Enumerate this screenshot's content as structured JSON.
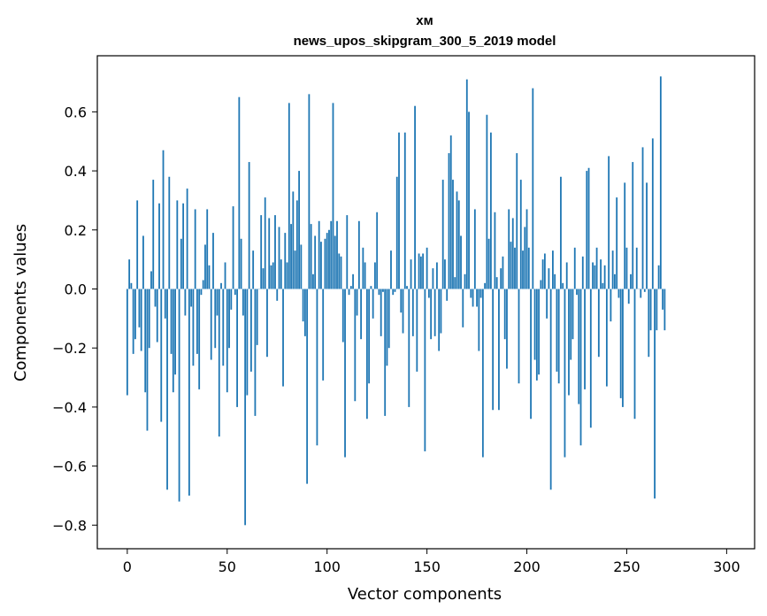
{
  "chart_data": {
    "type": "bar",
    "title_line1": "хм",
    "title_line2": "news_upos_skipgram_300_5_2019 model",
    "xlabel": "Vector components",
    "ylabel": "Components values",
    "xlim": [
      -15,
      314
    ],
    "ylim": [
      -0.88,
      0.79
    ],
    "xticks": [
      0,
      50,
      100,
      150,
      200,
      250,
      300
    ],
    "yticks": [
      -0.8,
      -0.6,
      -0.4,
      -0.2,
      0.0,
      0.2,
      0.4,
      0.6
    ],
    "ytick_labels": [
      "−0.8",
      "−0.6",
      "−0.4",
      "−0.2",
      "0.0",
      "0.2",
      "0.4",
      "0.6"
    ],
    "bar_color": "#1f77b4",
    "values": [
      -0.36,
      0.1,
      0.02,
      -0.22,
      -0.17,
      0.3,
      -0.13,
      -0.21,
      0.18,
      -0.35,
      -0.48,
      -0.2,
      0.06,
      0.37,
      -0.06,
      -0.18,
      0.29,
      -0.45,
      0.47,
      -0.1,
      -0.68,
      0.38,
      -0.22,
      -0.35,
      -0.29,
      0.3,
      -0.72,
      0.17,
      0.29,
      -0.09,
      0.34,
      -0.7,
      -0.06,
      -0.26,
      0.27,
      -0.22,
      -0.34,
      -0.02,
      0.03,
      0.15,
      0.27,
      0.08,
      -0.24,
      0.19,
      -0.2,
      -0.09,
      -0.5,
      0.02,
      -0.26,
      0.09,
      -0.35,
      -0.2,
      -0.07,
      0.28,
      -0.02,
      -0.4,
      0.65,
      0.17,
      -0.09,
      -0.8,
      -0.36,
      0.43,
      -0.28,
      0.13,
      -0.43,
      -0.19,
      0.0,
      0.25,
      0.07,
      0.31,
      -0.23,
      0.24,
      0.08,
      0.09,
      0.25,
      -0.04,
      0.21,
      0.1,
      -0.33,
      0.19,
      0.09,
      0.63,
      0.22,
      0.33,
      0.13,
      0.3,
      0.4,
      0.15,
      -0.11,
      -0.16,
      -0.66,
      0.66,
      0.22,
      0.05,
      0.18,
      -0.53,
      0.23,
      0.16,
      -0.31,
      0.17,
      0.19,
      0.2,
      0.23,
      0.63,
      0.18,
      0.23,
      0.12,
      0.11,
      -0.18,
      -0.57,
      0.25,
      -0.02,
      0.01,
      0.05,
      -0.38,
      -0.09,
      0.23,
      -0.17,
      0.14,
      0.09,
      -0.44,
      -0.32,
      0.01,
      -0.1,
      0.09,
      0.26,
      -0.02,
      -0.16,
      -0.01,
      -0.43,
      -0.26,
      -0.2,
      0.13,
      -0.02,
      -0.01,
      0.38,
      0.53,
      -0.08,
      -0.15,
      0.53,
      0.01,
      -0.4,
      0.1,
      -0.16,
      0.62,
      -0.28,
      0.12,
      0.11,
      0.12,
      -0.55,
      0.14,
      -0.03,
      -0.17,
      0.07,
      -0.16,
      0.09,
      -0.21,
      -0.15,
      0.37,
      0.1,
      -0.04,
      0.46,
      0.52,
      0.37,
      0.04,
      0.33,
      0.3,
      0.18,
      -0.13,
      0.05,
      0.71,
      0.6,
      -0.03,
      -0.06,
      0.27,
      -0.06,
      -0.21,
      -0.03,
      -0.57,
      0.02,
      0.59,
      0.17,
      0.53,
      -0.41,
      0.26,
      0.04,
      -0.41,
      0.07,
      0.11,
      -0.17,
      -0.27,
      0.27,
      0.16,
      0.24,
      0.14,
      0.46,
      -0.32,
      0.37,
      0.13,
      0.21,
      0.27,
      0.14,
      -0.44,
      0.68,
      -0.24,
      -0.31,
      -0.29,
      0.03,
      0.1,
      0.12,
      -0.1,
      0.07,
      -0.68,
      0.13,
      0.05,
      -0.28,
      -0.32,
      0.38,
      0.02,
      -0.57,
      0.09,
      -0.36,
      -0.24,
      -0.17,
      0.14,
      -0.02,
      -0.39,
      -0.53,
      0.11,
      -0.34,
      0.4,
      0.41,
      -0.47,
      0.09,
      0.08,
      0.14,
      -0.23,
      0.1,
      0.02,
      0.08,
      -0.33,
      0.45,
      -0.11,
      0.13,
      0.05,
      0.31,
      -0.03,
      -0.37,
      -0.4,
      0.36,
      0.14,
      -0.05,
      0.05,
      0.43,
      -0.44,
      0.14,
      0.0,
      -0.03,
      0.48,
      -0.01,
      0.36,
      -0.23,
      -0.14,
      0.51,
      -0.71,
      -0.14,
      0.08,
      0.72,
      -0.07,
      -0.14
    ]
  }
}
